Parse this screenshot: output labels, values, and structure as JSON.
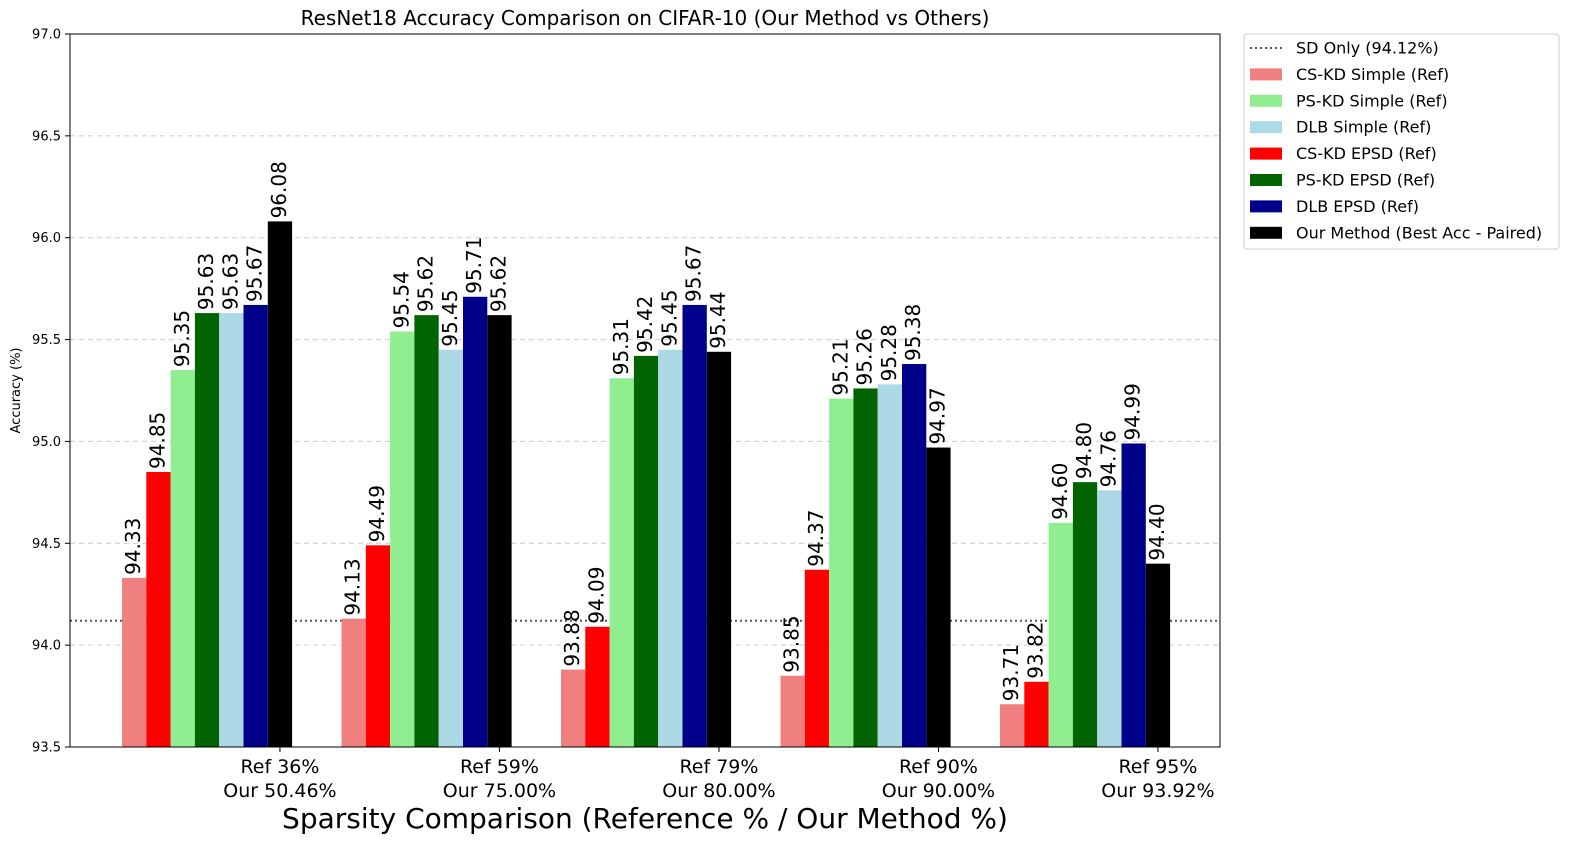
{
  "chart_data": {
    "type": "bar",
    "title": "ResNet18 Accuracy Comparison on CIFAR-10 (Our Method vs Others)",
    "xlabel": "Sparsity Comparison (Reference % / Our Method %)",
    "ylabel": "Accuracy (%)",
    "ylim": [
      93.5,
      97.0
    ],
    "yticks": [
      "93.5",
      "94.0",
      "94.5",
      "95.0",
      "95.5",
      "96.0",
      "96.5",
      "97.0"
    ],
    "grid": "y-dashed",
    "legend_position": "outside-top-right",
    "categories": [
      [
        "Ref 36%",
        "Our 50.46%"
      ],
      [
        "Ref 59%",
        "Our 75.00%"
      ],
      [
        "Ref 79%",
        "Our 80.00%"
      ],
      [
        "Ref 90%",
        "Our 90.00%"
      ],
      [
        "Ref 95%",
        "Our 93.92%"
      ]
    ],
    "reference_line": {
      "name": "SD Only (94.12%)",
      "value": 94.12,
      "color": "#555555",
      "style": "dotted"
    },
    "series": [
      {
        "name": "CS-KD Simple (Ref)",
        "color": "#f08080",
        "values": [
          94.33,
          94.13,
          93.88,
          93.85,
          93.71
        ],
        "labels": [
          "94.33",
          "94.13",
          "93.88",
          "93.85",
          "93.71"
        ]
      },
      {
        "name": "CS-KD EPSD (Ref)",
        "color": "#ff0000",
        "values": [
          94.85,
          94.49,
          94.09,
          94.37,
          93.82
        ],
        "labels": [
          "94.85",
          "94.49",
          "94.09",
          "94.37",
          "93.82"
        ]
      },
      {
        "name": "PS-KD Simple (Ref)",
        "color": "#90ee90",
        "values": [
          95.35,
          95.54,
          95.31,
          95.21,
          94.6
        ],
        "labels": [
          "95.35",
          "95.54",
          "95.31",
          "95.21",
          "94.60"
        ]
      },
      {
        "name": "PS-KD EPSD (Ref)",
        "color": "#006400",
        "values": [
          95.63,
          95.62,
          95.42,
          95.26,
          94.8
        ],
        "labels": [
          "95.63",
          "95.62",
          "95.42",
          "95.26",
          "94.80"
        ]
      },
      {
        "name": "DLB Simple (Ref)",
        "color": "#add8e6",
        "values": [
          95.63,
          95.45,
          95.45,
          95.28,
          94.76
        ],
        "labels": [
          "95.63",
          "95.45",
          "95.45",
          "95.28",
          "94.76"
        ]
      },
      {
        "name": "DLB EPSD (Ref)",
        "color": "#00008b",
        "values": [
          95.67,
          95.71,
          95.67,
          95.38,
          94.99
        ],
        "labels": [
          "95.67",
          "95.71",
          "95.67",
          "95.38",
          "94.99"
        ]
      },
      {
        "name": "Our Method (Best Acc - Paired)",
        "color": "#000000",
        "values": [
          96.08,
          95.62,
          95.44,
          94.97,
          94.4
        ],
        "labels": [
          "96.08",
          "95.62",
          "95.44",
          "94.97",
          "94.40"
        ]
      }
    ],
    "legend_order": [
      "SD Only (94.12%)",
      "CS-KD Simple (Ref)",
      "PS-KD Simple (Ref)",
      "DLB Simple (Ref)",
      "CS-KD EPSD (Ref)",
      "PS-KD EPSD (Ref)",
      "DLB EPSD (Ref)",
      "Our Method (Best Acc - Paired)"
    ]
  }
}
